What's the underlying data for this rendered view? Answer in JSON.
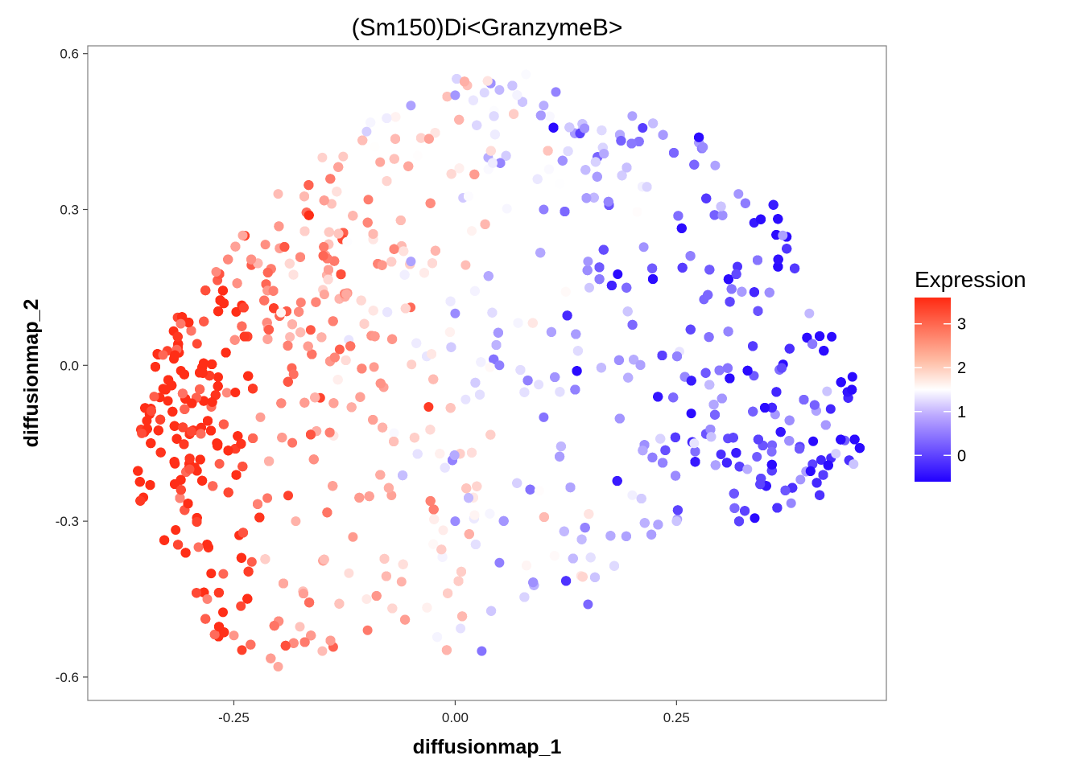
{
  "chart_data": {
    "type": "scatter",
    "title": "(Sm150)Di<GranzymeB>",
    "xlabel": "diffusionmap_1",
    "ylabel": "diffusionmap_2",
    "xlim": [
      -0.415,
      0.487
    ],
    "ylim": [
      -0.645,
      0.615
    ],
    "x_ticks": [
      -0.25,
      0.0,
      0.25
    ],
    "x_tick_labels": [
      "-0.25",
      "0.00",
      "0.25"
    ],
    "y_ticks": [
      -0.6,
      -0.3,
      0.0,
      0.3,
      0.6
    ],
    "y_tick_labels": [
      "-0.6",
      "-0.3",
      "0.0",
      "0.3",
      "0.6"
    ],
    "grid": false,
    "point_color_variable": "Expression",
    "point_count_approx": 4000,
    "legend": {
      "title": "Expression",
      "position": "right",
      "type": "colorbar",
      "range": [
        -0.6,
        3.6
      ],
      "ticks": [
        0,
        1,
        2,
        3
      ],
      "tick_labels": [
        "0",
        "1",
        "2",
        "3"
      ],
      "color_low": "#2200ff",
      "color_mid": "#ffffff",
      "color_high": "#ff2a12",
      "midpoint": 1.45
    },
    "series": [
      {
        "points": [
          [
            -0.354,
            -0.131,
            3.2
          ],
          [
            -0.34,
            -0.06,
            3.0
          ],
          [
            -0.33,
            0.02,
            2.9
          ],
          [
            -0.31,
            0.08,
            2.7
          ],
          [
            -0.3,
            -0.2,
            3.1
          ],
          [
            -0.29,
            -0.35,
            2.8
          ],
          [
            -0.28,
            -0.45,
            2.6
          ],
          [
            -0.25,
            -0.52,
            2.4
          ],
          [
            -0.27,
            0.18,
            2.5
          ],
          [
            -0.24,
            0.25,
            2.2
          ],
          [
            -0.2,
            0.33,
            2.0
          ],
          [
            -0.15,
            0.4,
            1.8
          ],
          [
            -0.22,
            -0.1,
            2.3
          ],
          [
            -0.18,
            -0.3,
            2.1
          ],
          [
            -0.12,
            -0.4,
            1.7
          ],
          [
            -0.1,
            0.45,
            1.0
          ],
          [
            -0.05,
            0.5,
            0.6
          ],
          [
            0.0,
            0.52,
            0.5
          ],
          [
            0.05,
            0.53,
            0.8
          ],
          [
            0.1,
            0.5,
            0.7
          ],
          [
            0.2,
            0.48,
            0.6
          ],
          [
            0.28,
            0.42,
            0.4
          ],
          [
            0.32,
            0.33,
            0.5
          ],
          [
            0.37,
            0.25,
            0.6
          ],
          [
            0.4,
            0.1,
            0.8
          ],
          [
            0.42,
            -0.05,
            0.9
          ],
          [
            0.43,
            -0.17,
            1.0
          ],
          [
            0.39,
            -0.22,
            0.5
          ],
          [
            0.33,
            -0.2,
            0.7
          ],
          [
            0.27,
            -0.15,
            1.2
          ],
          [
            0.25,
            -0.3,
            0.9
          ],
          [
            0.2,
            -0.25,
            1.3
          ],
          [
            0.1,
            -0.1,
            0.2
          ],
          [
            0.05,
            0.0,
            0.3
          ],
          [
            0.0,
            0.1,
            0.4
          ],
          [
            -0.03,
            -0.08,
            3.4
          ],
          [
            -0.05,
            0.2,
            0.6
          ],
          [
            0.15,
            0.2,
            0.5
          ],
          [
            0.1,
            0.3,
            0.3
          ],
          [
            0.0,
            -0.3,
            0.4
          ],
          [
            0.05,
            -0.38,
            0.3
          ],
          [
            0.15,
            -0.46,
            0.1
          ],
          [
            0.03,
            -0.55,
            0.2
          ],
          [
            -0.1,
            -0.45,
            1.6
          ],
          [
            -0.2,
            -0.58,
            2.2
          ],
          [
            -0.15,
            -0.55,
            2.0
          ],
          [
            0.08,
            0.56,
            1.4
          ],
          [
            0.45,
            -0.19,
            0.9
          ]
        ]
      }
    ]
  }
}
